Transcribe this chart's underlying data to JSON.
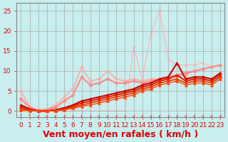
{
  "title": "",
  "xlabel": "Vent moyen/en rafales ( km/h )",
  "ylabel": "",
  "bg_color": "#c8eeee",
  "grid_color": "#aaaaaa",
  "axis_color": "#888888",
  "label_color": "#dd0000",
  "xlim": [
    -0.5,
    23.5
  ],
  "ylim": [
    -1.5,
    27
  ],
  "yticks": [
    0,
    5,
    10,
    15,
    20,
    25
  ],
  "xticks": [
    0,
    1,
    2,
    3,
    4,
    5,
    6,
    7,
    8,
    9,
    10,
    11,
    12,
    13,
    14,
    15,
    16,
    17,
    18,
    19,
    20,
    21,
    22,
    23
  ],
  "series": [
    {
      "comment": "lightest pink - starts at ~5, broad humps, peaks ~11 at x=7, x=9~8, x=10~10.5, x=11~8, stays ~8 then ~11 at end",
      "x": [
        0,
        1,
        2,
        3,
        4,
        5,
        6,
        7,
        8,
        9,
        10,
        11,
        12,
        13,
        14,
        15,
        16,
        17,
        18,
        19,
        20,
        21,
        22,
        23
      ],
      "y": [
        5,
        1,
        0.2,
        0.5,
        1.5,
        3.5,
        5.5,
        11,
        7.5,
        8,
        10,
        8,
        7.5,
        8,
        7.5,
        8,
        8,
        8,
        8.5,
        9,
        10,
        10.5,
        11,
        11.5
      ],
      "color": "#ffaaaa",
      "lw": 1.2,
      "marker": "D",
      "ms": 2.5,
      "zorder": 2
    },
    {
      "comment": "medium pink - starts ~3, peaks ~11.5 at x=7, dips x=8, hump at x=6-7, then ~8-11 range at end",
      "x": [
        0,
        1,
        2,
        3,
        4,
        5,
        6,
        7,
        8,
        9,
        10,
        11,
        12,
        13,
        14,
        15,
        16,
        17,
        18,
        19,
        20,
        21,
        22,
        23
      ],
      "y": [
        3,
        1,
        0.2,
        0.3,
        1,
        2.5,
        4,
        8.5,
        6.5,
        7,
        8,
        7,
        7,
        7.5,
        7,
        7.5,
        8,
        8.5,
        9,
        9.5,
        10,
        10.5,
        11,
        11.5
      ],
      "color": "#ff8888",
      "lw": 1.5,
      "marker": "D",
      "ms": 2.5,
      "zorder": 2
    },
    {
      "comment": "very light pink single peak line - starts ~3, peak ~16 at x=14, peak ~25 at x=16, then drops to ~13, stays ~11-12",
      "x": [
        0,
        1,
        2,
        3,
        4,
        5,
        6,
        7,
        8,
        9,
        10,
        11,
        12,
        13,
        14,
        15,
        16,
        17,
        18,
        19,
        20,
        21,
        22,
        23
      ],
      "y": [
        3,
        1,
        0,
        0,
        0,
        0,
        0,
        0,
        0,
        0,
        0,
        0,
        0,
        16,
        8,
        19.5,
        25,
        13,
        11.5,
        11.5,
        11.5,
        12,
        11,
        11.5
      ],
      "color": "#ffbbbb",
      "lw": 1.0,
      "marker": "D",
      "ms": 2.0,
      "zorder": 1
    },
    {
      "comment": "dark red - near-linear rise from 0 to ~9, with peak ~12 at x=18",
      "x": [
        0,
        1,
        2,
        3,
        4,
        5,
        6,
        7,
        8,
        9,
        10,
        11,
        12,
        13,
        14,
        15,
        16,
        17,
        18,
        19,
        20,
        21,
        22,
        23
      ],
      "y": [
        1.5,
        0.5,
        0,
        0,
        0.3,
        0.8,
        1.5,
        2.5,
        3,
        3.5,
        4,
        4.5,
        5,
        5.5,
        6.5,
        7,
        8,
        8.5,
        12,
        8,
        8.5,
        8.5,
        8,
        9.5
      ],
      "color": "#cc0000",
      "lw": 1.5,
      "marker": "^",
      "ms": 3.0,
      "zorder": 3
    },
    {
      "comment": "medium red - linear rise, slightly below dark red",
      "x": [
        0,
        1,
        2,
        3,
        4,
        5,
        6,
        7,
        8,
        9,
        10,
        11,
        12,
        13,
        14,
        15,
        16,
        17,
        18,
        19,
        20,
        21,
        22,
        23
      ],
      "y": [
        1,
        0.3,
        0,
        0,
        0.2,
        0.6,
        1.2,
        2,
        2.5,
        3,
        3.5,
        4,
        4.5,
        5,
        6,
        6.5,
        7.5,
        8,
        9,
        7.5,
        8,
        8,
        7.5,
        9
      ],
      "color": "#dd2200",
      "lw": 1.5,
      "marker": "^",
      "ms": 3.0,
      "zorder": 3
    },
    {
      "comment": "orange-red - linear rise, thin",
      "x": [
        0,
        1,
        2,
        3,
        4,
        5,
        6,
        7,
        8,
        9,
        10,
        11,
        12,
        13,
        14,
        15,
        16,
        17,
        18,
        19,
        20,
        21,
        22,
        23
      ],
      "y": [
        0.5,
        0.2,
        0,
        0,
        0.1,
        0.4,
        0.9,
        1.5,
        2,
        2.5,
        3,
        3.5,
        4,
        4.5,
        5.5,
        6,
        7,
        7.5,
        8,
        7,
        7.5,
        7.5,
        7,
        8.5
      ],
      "color": "#ee3300",
      "lw": 1.2,
      "marker": "^",
      "ms": 3.0,
      "zorder": 3
    },
    {
      "comment": "bright red lowest linear - nearly straight line",
      "x": [
        0,
        1,
        2,
        3,
        4,
        5,
        6,
        7,
        8,
        9,
        10,
        11,
        12,
        13,
        14,
        15,
        16,
        17,
        18,
        19,
        20,
        21,
        22,
        23
      ],
      "y": [
        0.2,
        0.1,
        0,
        0,
        0.05,
        0.3,
        0.7,
        1.2,
        1.5,
        2,
        2.5,
        3,
        3.5,
        4,
        5,
        5.5,
        6.5,
        7,
        7.5,
        6.5,
        7,
        7,
        6.5,
        8
      ],
      "color": "#ff4400",
      "lw": 1.0,
      "marker": "^",
      "ms": 3.0,
      "zorder": 3
    }
  ],
  "arrow_symbols": [
    "↑",
    "↑",
    "↙",
    "↙",
    "↙",
    "↙",
    "↓",
    "↓",
    "↓",
    "↙",
    "↙",
    "↙",
    "↙",
    "↙",
    "↙",
    "↙",
    "↙",
    "↙",
    "↙",
    "↙",
    "↙",
    "↙",
    "↙",
    "↙"
  ],
  "xlabel_fontsize": 9,
  "tick_fontsize": 6.5
}
